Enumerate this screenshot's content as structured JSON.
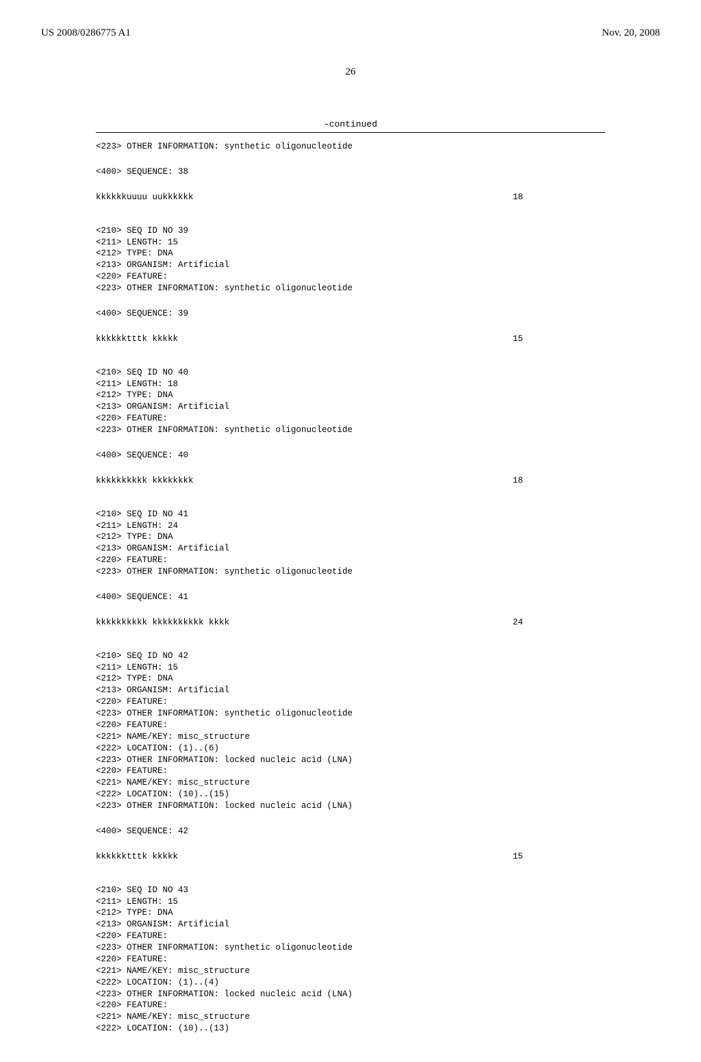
{
  "header": {
    "left": "US 2008/0286775 A1",
    "right": "Nov. 20, 2008"
  },
  "page_number": "26",
  "continued_label": "-continued",
  "entries": [
    {
      "lines": [
        "<223> OTHER INFORMATION: synthetic oligonucleotide"
      ],
      "seq_label": "<400> SEQUENCE: 38",
      "seq_text": "kkkkkkuuuu uukkkkkk",
      "seq_len": "18"
    },
    {
      "lines": [
        "<210> SEQ ID NO 39",
        "<211> LENGTH: 15",
        "<212> TYPE: DNA",
        "<213> ORGANISM: Artificial",
        "<220> FEATURE:",
        "<223> OTHER INFORMATION: synthetic oligonucleotide"
      ],
      "seq_label": "<400> SEQUENCE: 39",
      "seq_text": "kkkkkktttk kkkkk",
      "seq_len": "15"
    },
    {
      "lines": [
        "<210> SEQ ID NO 40",
        "<211> LENGTH: 18",
        "<212> TYPE: DNA",
        "<213> ORGANISM: Artificial",
        "<220> FEATURE:",
        "<223> OTHER INFORMATION: synthetic oligonucleotide"
      ],
      "seq_label": "<400> SEQUENCE: 40",
      "seq_text": "kkkkkkkkkk kkkkkkkk",
      "seq_len": "18"
    },
    {
      "lines": [
        "<210> SEQ ID NO 41",
        "<211> LENGTH: 24",
        "<212> TYPE: DNA",
        "<213> ORGANISM: Artificial",
        "<220> FEATURE:",
        "<223> OTHER INFORMATION: synthetic oligonucleotide"
      ],
      "seq_label": "<400> SEQUENCE: 41",
      "seq_text": "kkkkkkkkkk kkkkkkkkkk kkkk",
      "seq_len": "24"
    },
    {
      "lines": [
        "<210> SEQ ID NO 42",
        "<211> LENGTH: 15",
        "<212> TYPE: DNA",
        "<213> ORGANISM: Artificial",
        "<220> FEATURE:",
        "<223> OTHER INFORMATION: synthetic oligonucleotide",
        "<220> FEATURE:",
        "<221> NAME/KEY: misc_structure",
        "<222> LOCATION: (1)..(6)",
        "<223> OTHER INFORMATION: locked nucleic acid (LNA)",
        "<220> FEATURE:",
        "<221> NAME/KEY: misc_structure",
        "<222> LOCATION: (10)..(15)",
        "<223> OTHER INFORMATION: locked nucleic acid (LNA)"
      ],
      "seq_label": "<400> SEQUENCE: 42",
      "seq_text": "kkkkkktttk kkkkk",
      "seq_len": "15"
    },
    {
      "lines": [
        "<210> SEQ ID NO 43",
        "<211> LENGTH: 15",
        "<212> TYPE: DNA",
        "<213> ORGANISM: Artificial",
        "<220> FEATURE:",
        "<223> OTHER INFORMATION: synthetic oligonucleotide",
        "<220> FEATURE:",
        "<221> NAME/KEY: misc_structure",
        "<222> LOCATION: (1)..(4)",
        "<223> OTHER INFORMATION: locked nucleic acid (LNA)",
        "<220> FEATURE:",
        "<221> NAME/KEY: misc_structure",
        "<222> LOCATION: (10)..(13)"
      ],
      "seq_label": "",
      "seq_text": "",
      "seq_len": ""
    }
  ]
}
